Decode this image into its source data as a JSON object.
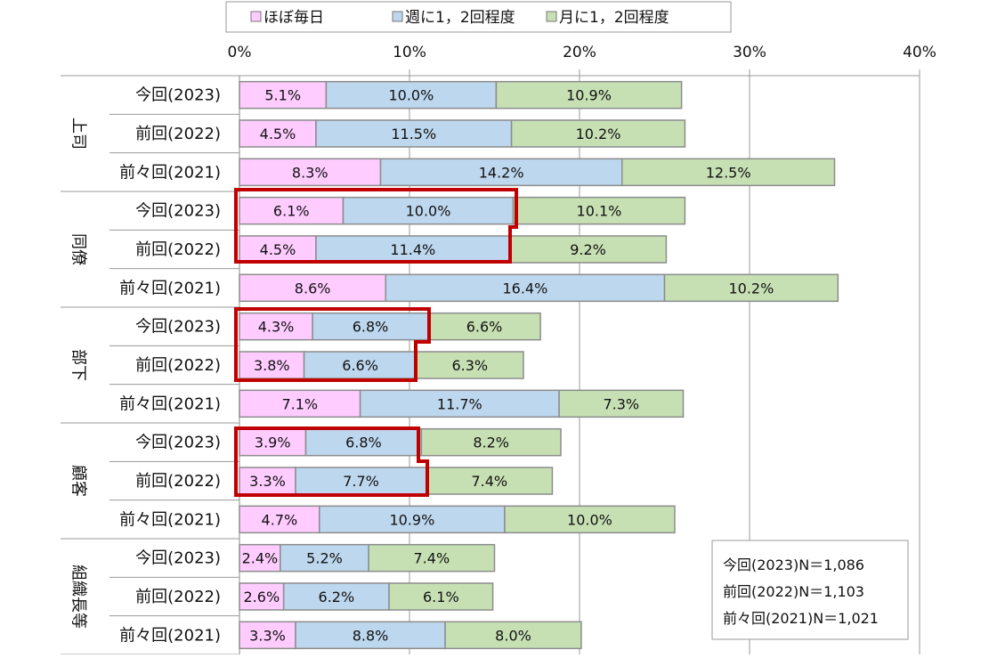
{
  "chart_data": {
    "type": "bar",
    "orientation": "horizontal",
    "stacked": true,
    "xlim": [
      0,
      40
    ],
    "x_ticks": [
      "0%",
      "10%",
      "20%",
      "30%",
      "40%"
    ],
    "grid": true,
    "legend_position": "top",
    "series": [
      {
        "name": "ほぼ毎日",
        "color": "#FFCCFF"
      },
      {
        "name": "週に1，2回程度",
        "color": "#BDD7EE"
      },
      {
        "name": "月に1，2回程度",
        "color": "#C6E0B4"
      }
    ],
    "groups": [
      {
        "label": "上司",
        "rows": [
          {
            "label": "今回(2023)",
            "values": [
              5.1,
              10.0,
              10.9
            ]
          },
          {
            "label": "前回(2022)",
            "values": [
              4.5,
              11.5,
              10.2
            ]
          },
          {
            "label": "前々回(2021)",
            "values": [
              8.3,
              14.2,
              12.5
            ]
          }
        ]
      },
      {
        "label": "同僚",
        "rows": [
          {
            "label": "今回(2023)",
            "values": [
              6.1,
              10.0,
              10.1
            ]
          },
          {
            "label": "前回(2022)",
            "values": [
              4.5,
              11.4,
              9.2
            ]
          },
          {
            "label": "前々回(2021)",
            "values": [
              8.6,
              16.4,
              10.2
            ]
          }
        ]
      },
      {
        "label": "部下",
        "rows": [
          {
            "label": "今回(2023)",
            "values": [
              4.3,
              6.8,
              6.6
            ]
          },
          {
            "label": "前回(2022)",
            "values": [
              3.8,
              6.6,
              6.3
            ]
          },
          {
            "label": "前々回(2021)",
            "values": [
              7.1,
              11.7,
              7.3
            ]
          }
        ]
      },
      {
        "label": "顧客",
        "rows": [
          {
            "label": "今回(2023)",
            "values": [
              3.9,
              6.8,
              8.2
            ]
          },
          {
            "label": "前回(2022)",
            "values": [
              3.3,
              7.7,
              7.4
            ]
          },
          {
            "label": "前々回(2021)",
            "values": [
              4.7,
              10.9,
              10.0
            ]
          }
        ]
      },
      {
        "label": "組織長等",
        "rows": [
          {
            "label": "今回(2023)",
            "values": [
              2.4,
              5.2,
              7.4
            ]
          },
          {
            "label": "前回(2022)",
            "values": [
              2.6,
              6.2,
              6.1
            ]
          },
          {
            "label": "前々回(2021)",
            "values": [
              3.3,
              8.8,
              8.0
            ]
          }
        ]
      }
    ],
    "highlight_color": "#C00000",
    "sample_sizes": [
      "今回(2023)N＝1,086",
      "前回(2022)N＝1,103",
      "前々回(2021)N＝1,021"
    ]
  }
}
